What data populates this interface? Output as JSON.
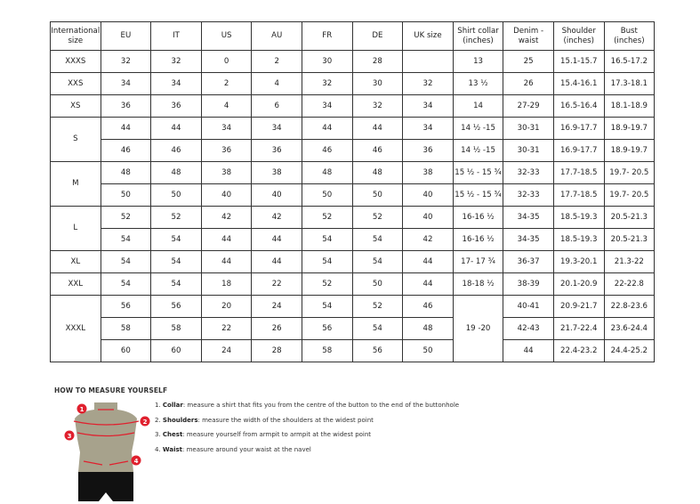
{
  "table": {
    "headers": [
      "International size",
      "EU",
      "IT",
      "US",
      "AU",
      "FR",
      "DE",
      "UK size",
      "Shirt collar (inches)",
      "Denim - waist",
      "Shoulder (inches)",
      "Bust (inches)"
    ],
    "groups": [
      {
        "size": "XXXS",
        "rows": [
          [
            "32",
            "32",
            "0",
            "2",
            "30",
            "28",
            "",
            "13",
            "25",
            "15.1-15.7",
            "16.5-17.2"
          ]
        ]
      },
      {
        "size": "XXS",
        "rows": [
          [
            "34",
            "34",
            "2",
            "4",
            "32",
            "30",
            "32",
            "13 ½",
            "26",
            "15.4-16.1",
            "17.3-18.1"
          ]
        ]
      },
      {
        "size": "XS",
        "rows": [
          [
            "36",
            "36",
            "4",
            "6",
            "34",
            "32",
            "34",
            "14",
            "27-29",
            "16.5-16.4",
            "18.1-18.9"
          ]
        ]
      },
      {
        "size": "S",
        "rows": [
          [
            "44",
            "44",
            "34",
            "34",
            "44",
            "44",
            "34",
            "14 ½ -15",
            "30-31",
            "16.9-17.7",
            "18.9-19.7"
          ],
          [
            "46",
            "46",
            "36",
            "36",
            "46",
            "46",
            "36",
            "14 ½ -15",
            "30-31",
            "16.9-17.7",
            "18.9-19.7"
          ]
        ]
      },
      {
        "size": "M",
        "rows": [
          [
            "48",
            "48",
            "38",
            "38",
            "48",
            "48",
            "38",
            "15 ½ - 15 ¾",
            "32-33",
            "17.7-18.5",
            "19.7- 20.5"
          ],
          [
            "50",
            "50",
            "40",
            "40",
            "50",
            "50",
            "40",
            "15 ½ - 15 ¾",
            "32-33",
            "17.7-18.5",
            "19.7- 20.5"
          ]
        ]
      },
      {
        "size": "L",
        "rows": [
          [
            "52",
            "52",
            "42",
            "42",
            "52",
            "52",
            "40",
            "16-16 ½",
            "34-35",
            "18.5-19.3",
            "20.5-21.3"
          ],
          [
            "54",
            "54",
            "44",
            "44",
            "54",
            "54",
            "42",
            "16-16 ½",
            "34-35",
            "18.5-19.3",
            "20.5-21.3"
          ]
        ]
      },
      {
        "size": "XL",
        "rows": [
          [
            "54",
            "54",
            "44",
            "44",
            "54",
            "54",
            "44",
            "17- 17 ¾",
            "36-37",
            "19.3-20.1",
            "21.3-22"
          ]
        ]
      },
      {
        "size": "XXL",
        "rows": [
          [
            "54",
            "54",
            "18",
            "22",
            "52",
            "50",
            "44",
            "18-18 ½",
            "38-39",
            "20.1-20.9",
            "22-22.8"
          ]
        ]
      },
      {
        "size": "XXXL",
        "collar": "19 -20",
        "rows": [
          [
            "56",
            "56",
            "20",
            "24",
            "54",
            "52",
            "46",
            null,
            "40-41",
            "20.9-21.7",
            "22.8-23.6"
          ],
          [
            "58",
            "58",
            "22",
            "26",
            "56",
            "54",
            "48",
            null,
            "42-43",
            "21.7-22.4",
            "23.6-24.4"
          ],
          [
            "60",
            "60",
            "24",
            "28",
            "58",
            "56",
            "50",
            null,
            "44",
            "22.4-23.2",
            "24.4-25.2"
          ]
        ]
      }
    ]
  },
  "measure": {
    "title": "HOW TO MEASURE YOURSELF",
    "markers": [
      "1",
      "2",
      "3",
      "4"
    ],
    "steps": [
      {
        "num": "1.",
        "term": "Collar",
        "text": ": measure a shirt that fits you from the centre of the button to the end of the buttonhole"
      },
      {
        "num": "2.",
        "term": "Shoulders",
        "text": ": measure the width of the shoulders at the widest point"
      },
      {
        "num": "3.",
        "term": "Chest",
        "text": ": measure yourself from armpit to armpit at the widest point"
      },
      {
        "num": "4.",
        "term": "Waist",
        "text": ": measure around your waist at the navel"
      }
    ],
    "colors": {
      "accent": "#e0202e",
      "torso": "#a7a28c",
      "shorts": "#111111"
    }
  }
}
